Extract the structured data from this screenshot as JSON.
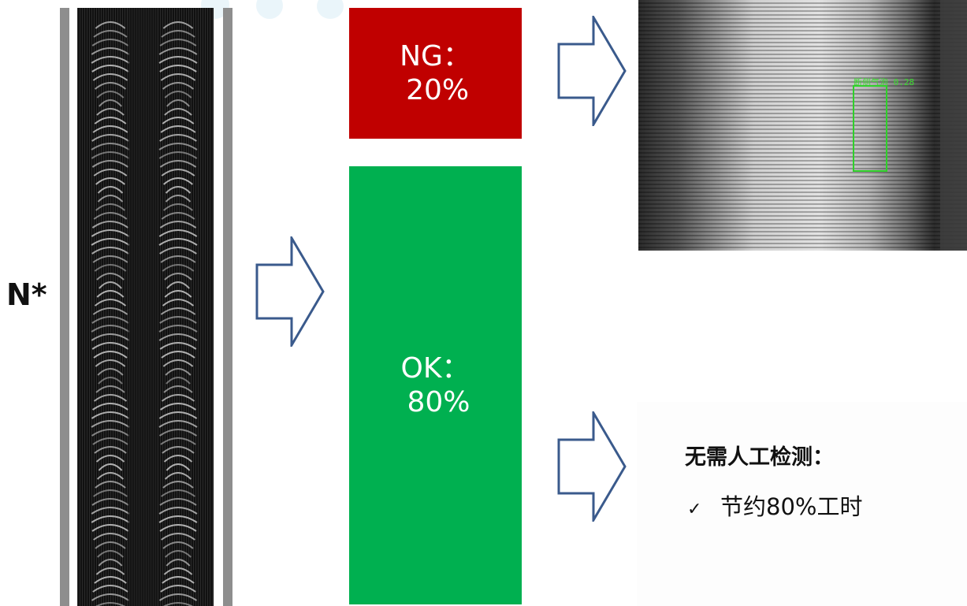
{
  "multiplier_label": "N*",
  "blocks": {
    "ng": {
      "label": "NG：",
      "value": "20%",
      "color": "#c00000"
    },
    "ok": {
      "label": "OK：",
      "value": "80%",
      "color": "#00b050"
    }
  },
  "defect": {
    "label": "断侧气泡 0.28",
    "box_color": "#2fd02a"
  },
  "note": {
    "title": "无需人工检测：",
    "items": [
      {
        "icon": "check-icon",
        "text": "节约80%工时"
      }
    ]
  },
  "arrow_color": "#3a5a8c"
}
